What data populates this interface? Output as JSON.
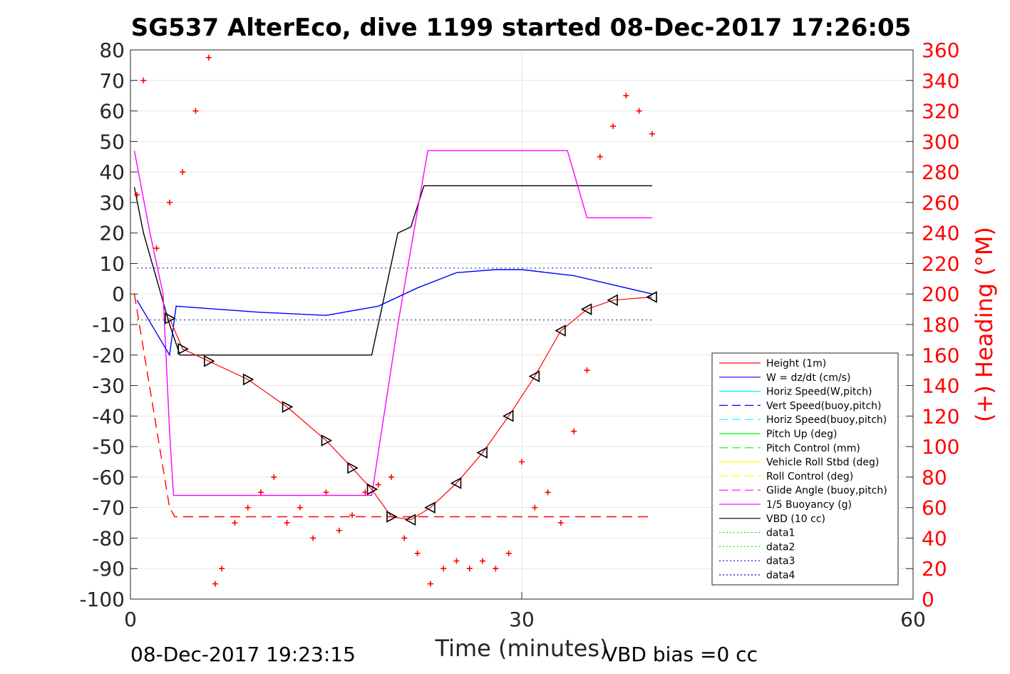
{
  "chart_data": {
    "type": "line",
    "title": "SG537 AlterEco, dive 1199 started 08-Dec-2017 17:26:05",
    "xlabel": "Time (minutes)",
    "ylabel_right": "(+) Heading (°M)",
    "xlim": [
      0,
      60
    ],
    "ylim": [
      -100,
      80
    ],
    "ylim_right": [
      0,
      360
    ],
    "x_ticks": [
      0,
      30,
      60
    ],
    "y_ticks": [
      -100,
      -90,
      -80,
      -70,
      -60,
      -50,
      -40,
      -30,
      -20,
      -10,
      0,
      10,
      20,
      30,
      40,
      50,
      60,
      70,
      80
    ],
    "y_ticks_right": [
      0,
      20,
      40,
      60,
      80,
      100,
      120,
      140,
      160,
      180,
      200,
      220,
      240,
      260,
      280,
      300,
      320,
      340,
      360
    ],
    "grid": true,
    "legend_placement": "lower-right",
    "footer_left": "08-Dec-2017 19:23:15",
    "footer_right": "VBD bias =0 cc",
    "legend": [
      {
        "name": "Height (1m)",
        "color": "#ff0000",
        "dash": "solid"
      },
      {
        "name": "W = dz/dt (cm/s)",
        "color": "#0000ff",
        "dash": "solid"
      },
      {
        "name": "Horiz Speed(W,pitch)",
        "color": "#00ffff",
        "dash": "solid"
      },
      {
        "name": "Vert Speed(buoy,pitch)",
        "color": "#0000ff",
        "dash": "dashed"
      },
      {
        "name": "Horiz Speed(buoy,pitch)",
        "color": "#00ffff",
        "dash": "dashed"
      },
      {
        "name": "Pitch Up (deg)",
        "color": "#00ff00",
        "dash": "solid"
      },
      {
        "name": "Pitch Control (mm)",
        "color": "#00ff00",
        "dash": "dashed"
      },
      {
        "name": "Vehicle Roll Stbd (deg)",
        "color": "#ffff00",
        "dash": "solid"
      },
      {
        "name": "Roll Control (deg)",
        "color": "#ffff00",
        "dash": "dashed"
      },
      {
        "name": "Glide Angle (buoy,pitch)",
        "color": "#ff00ff",
        "dash": "dashed"
      },
      {
        "name": "1/5 Buoyancy (g)",
        "color": "#ff00ff",
        "dash": "solid"
      },
      {
        "name": "VBD (10 cc)",
        "color": "#000000",
        "dash": "solid"
      },
      {
        "name": "data1",
        "color": "#00ff00",
        "dash": "dotted"
      },
      {
        "name": "data2",
        "color": "#00ff00",
        "dash": "dotted"
      },
      {
        "name": "data3",
        "color": "#0000ff",
        "dash": "dotted"
      },
      {
        "name": "data4",
        "color": "#0000ff",
        "dash": "dotted"
      }
    ],
    "series": [
      {
        "name": "VBD (10 cc)",
        "color": "#000000",
        "x": [
          0.3,
          1.0,
          2.0,
          3.0,
          3.8,
          18.5,
          20.5,
          21.5,
          22.5,
          40
        ],
        "y": [
          35,
          20,
          5,
          -10,
          -20,
          -20,
          20,
          22,
          35.5,
          35.5
        ]
      },
      {
        "name": "1/5 Buoyancy (g)",
        "color": "#ff00ff",
        "x": [
          0.3,
          1.5,
          2.5,
          3.0,
          3.3,
          18.5,
          20.5,
          22.8,
          33.5,
          35,
          37,
          38,
          40
        ],
        "y": [
          47,
          20,
          0,
          -45,
          -66,
          -66,
          -10,
          47,
          47,
          25,
          25,
          25,
          25
        ]
      },
      {
        "name": "Height (1m)",
        "color": "#ff0000",
        "x": [
          0.3,
          3.0,
          3.4,
          40
        ],
        "y": [
          0,
          -70,
          -73,
          -73
        ]
      },
      {
        "name": "W = dz/dt (cm/s)",
        "color": "#0000ff",
        "x": [
          0.5,
          3.0,
          3.5,
          10,
          15,
          19,
          22,
          25,
          28,
          30,
          34,
          40
        ],
        "y": [
          -2,
          -20,
          -4,
          -6,
          -7,
          -4,
          2,
          7,
          8,
          8,
          6,
          0
        ]
      }
    ],
    "depth_markers": {
      "x": [
        3.0,
        4.0,
        6.0,
        9.0,
        12.0,
        15.0,
        17.0,
        18.5,
        20.0,
        21.5,
        23.0,
        25.0,
        27.0,
        29.0,
        31.0,
        33.0,
        35.0,
        37.0,
        40.0
      ],
      "y": [
        -8,
        -18,
        -22,
        -28,
        -37,
        -48,
        -57,
        -64,
        -73,
        -74,
        -70,
        -62,
        -52,
        -40,
        -27,
        -12,
        -5,
        -2,
        -1
      ]
    },
    "heading": {
      "x": [
        0.5,
        1.0,
        2.0,
        3.0,
        4.0,
        5.0,
        6.0,
        6.5,
        7.0,
        8.0,
        9.0,
        10.0,
        11.0,
        12.0,
        13.0,
        14.0,
        15.0,
        16.0,
        17.0,
        18.0,
        19.0,
        20.0,
        21.0,
        22.0,
        23.0,
        24.0,
        25.0,
        26.0,
        27.0,
        28.0,
        29.0,
        30.0,
        31.0,
        32.0,
        33.0,
        34.0,
        35.0,
        36.0,
        37.0,
        38.0,
        39.0,
        40.0
      ],
      "y": [
        265,
        340,
        230,
        260,
        280,
        320,
        355,
        10,
        20,
        50,
        60,
        70,
        80,
        50,
        60,
        40,
        70,
        45,
        55,
        70,
        75,
        80,
        40,
        30,
        10,
        20,
        25,
        20,
        25,
        20,
        30,
        90,
        60,
        70,
        50,
        110,
        150,
        290,
        310,
        330,
        320,
        305
      ]
    }
  }
}
